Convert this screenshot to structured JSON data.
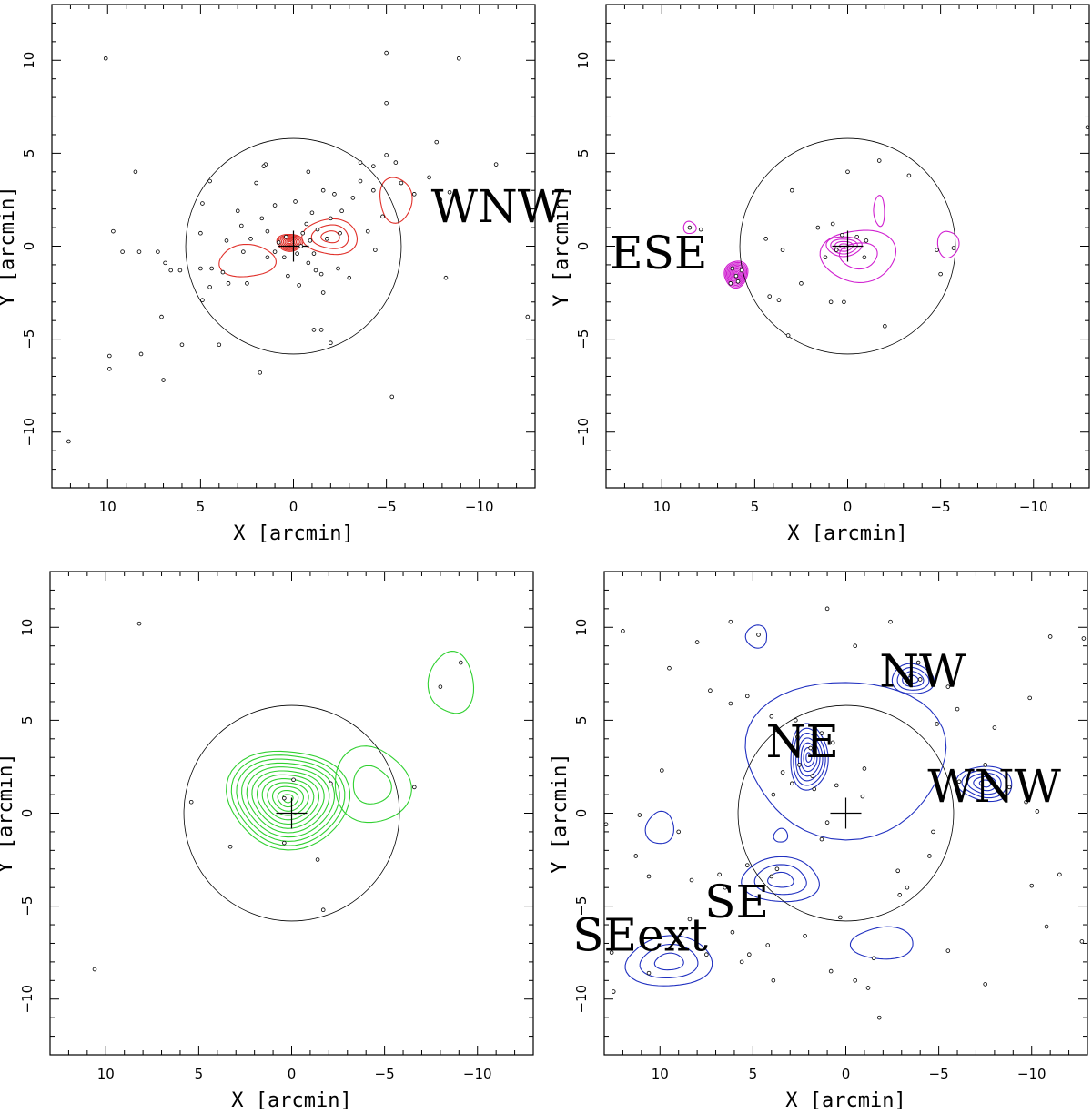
{
  "chart_data": [
    {
      "type": "scatter",
      "panel": "top-left",
      "xlabel": "X [arcmin]",
      "ylabel": "Y [arcmin]",
      "xlim": [
        13,
        -13
      ],
      "ylim": [
        -13,
        13
      ],
      "xticks": [
        10,
        5,
        0,
        -5,
        -10
      ],
      "yticks": [
        -10,
        -5,
        0,
        5,
        10
      ],
      "contour_color": "#e0302a",
      "circle_radius": 5.8,
      "center": [
        0,
        0
      ],
      "annotations": [
        {
          "text": "WNW",
          "x": -7.4,
          "y": 1.3
        }
      ],
      "blobs": [
        {
          "x": 0.2,
          "y": 0.2,
          "sx": 0.7,
          "sy": 0.5,
          "levels": 8
        },
        {
          "x": -2.0,
          "y": 0.5,
          "sx": 1.6,
          "sy": 1.1,
          "levels": 3
        },
        {
          "x": -5.5,
          "y": 2.5,
          "sx": 1.2,
          "sy": 1.6,
          "levels": 1
        },
        {
          "x": 2.5,
          "y": -0.8,
          "sx": 2.0,
          "sy": 1.2,
          "levels": 1
        }
      ],
      "points": [
        [
          10.1,
          10.1
        ],
        [
          -5.0,
          10.4
        ],
        [
          -8.9,
          10.1
        ],
        [
          -5.0,
          7.7
        ],
        [
          -7.7,
          5.6
        ],
        [
          -10.9,
          4.4
        ],
        [
          -7.3,
          3.7
        ],
        [
          -7.9,
          2.5
        ],
        [
          -8.4,
          2.9
        ],
        [
          8.5,
          4.0
        ],
        [
          9.7,
          0.8
        ],
        [
          9.2,
          -0.3
        ],
        [
          8.3,
          -0.3
        ],
        [
          7.3,
          -0.3
        ],
        [
          6.9,
          -0.9
        ],
        [
          6.6,
          -1.3
        ],
        [
          6.1,
          -1.3
        ],
        [
          5.0,
          -1.2
        ],
        [
          4.4,
          -1.2
        ],
        [
          3.8,
          -1.4
        ],
        [
          -4.4,
          -0.2
        ],
        [
          -3.0,
          -1.7
        ],
        [
          -8.2,
          -1.7
        ],
        [
          -12.6,
          -3.8
        ],
        [
          7.1,
          -3.8
        ],
        [
          4.0,
          -5.3
        ],
        [
          6.0,
          -5.3
        ],
        [
          8.2,
          -5.8
        ],
        [
          9.9,
          -5.9
        ],
        [
          9.9,
          -6.6
        ],
        [
          1.8,
          -6.8
        ],
        [
          7.0,
          -7.2
        ],
        [
          -5.3,
          -8.1
        ],
        [
          12.1,
          -10.5
        ],
        [
          -1.1,
          -4.5
        ],
        [
          -2.0,
          -5.2
        ],
        [
          -1.5,
          -4.5
        ],
        [
          4.9,
          -2.9
        ],
        [
          4.5,
          -2.2
        ],
        [
          3.5,
          -2.0
        ],
        [
          2.5,
          -2.0
        ],
        [
          -1.6,
          -2.5
        ],
        [
          -0.3,
          -2.1
        ],
        [
          0.3,
          -1.6
        ],
        [
          -1.5,
          -1.5
        ],
        [
          -2.4,
          -1.2
        ],
        [
          -1.2,
          -1.3
        ],
        [
          -0.8,
          -0.9
        ],
        [
          0.5,
          -0.6
        ],
        [
          1.0,
          -0.3
        ],
        [
          -0.2,
          -0.4
        ],
        [
          0.4,
          0.5
        ],
        [
          0.8,
          0.2
        ],
        [
          -0.5,
          0.7
        ],
        [
          -0.9,
          0.3
        ],
        [
          -1.3,
          0.9
        ],
        [
          -1.8,
          0.4
        ],
        [
          -2.5,
          0.7
        ],
        [
          -2.0,
          1.5
        ],
        [
          -1.0,
          1.8
        ],
        [
          -0.7,
          1.2
        ],
        [
          -2.6,
          1.9
        ],
        [
          -3.2,
          2.6
        ],
        [
          -2.2,
          2.8
        ],
        [
          -3.6,
          3.5
        ],
        [
          -4.3,
          3.0
        ],
        [
          -4.3,
          4.3
        ],
        [
          -5.0,
          4.9
        ],
        [
          -5.5,
          4.5
        ],
        [
          -4.8,
          1.6
        ],
        [
          -4.0,
          0.8
        ],
        [
          -6.5,
          2.8
        ],
        [
          -5.8,
          3.4
        ],
        [
          1.7,
          1.5
        ],
        [
          1.4,
          0.8
        ],
        [
          2.3,
          0.4
        ],
        [
          2.8,
          1.1
        ],
        [
          3.0,
          1.9
        ],
        [
          4.9,
          2.3
        ],
        [
          4.5,
          3.5
        ],
        [
          1.0,
          2.2
        ],
        [
          -0.1,
          2.4
        ],
        [
          2.0,
          3.4
        ],
        [
          1.5,
          4.4
        ],
        [
          -0.8,
          4.0
        ],
        [
          -1.6,
          3.0
        ],
        [
          1.4,
          -0.6
        ],
        [
          -1.1,
          -0.4
        ],
        [
          -0.4,
          0.0
        ],
        [
          3.6,
          0.3
        ],
        [
          2.7,
          -0.3
        ],
        [
          5.0,
          0.7
        ],
        [
          -3.6,
          4.5
        ],
        [
          1.6,
          4.3
        ]
      ]
    },
    {
      "type": "scatter",
      "panel": "top-right",
      "xlabel": "X [arcmin]",
      "ylabel": "Y [arcmin]",
      "xlim": [
        13,
        -13
      ],
      "ylim": [
        -13,
        13
      ],
      "xticks": [
        10,
        5,
        0,
        -5,
        -10
      ],
      "yticks": [
        -10,
        -5,
        0,
        5,
        10
      ],
      "contour_color": "#d020d0",
      "circle_radius": 5.8,
      "center": [
        0,
        0
      ],
      "annotations": [
        {
          "text": "ESE",
          "x": 12.8,
          "y": -1.2
        }
      ],
      "blobs": [
        {
          "x": 6.0,
          "y": -1.5,
          "sx": 0.65,
          "sy": 0.75,
          "levels": 10
        },
        {
          "x": 8.5,
          "y": 1.0,
          "sx": 0.45,
          "sy": 0.45,
          "levels": 1
        },
        {
          "x": 0.2,
          "y": 0.0,
          "sx": 1.0,
          "sy": 0.6,
          "levels": 4
        },
        {
          "x": -0.6,
          "y": -0.5,
          "sx": 2.3,
          "sy": 1.7,
          "levels": 2
        },
        {
          "x": -1.7,
          "y": 1.9,
          "sx": 0.4,
          "sy": 1.1,
          "levels": 1
        },
        {
          "x": -5.4,
          "y": 0.1,
          "sx": 0.75,
          "sy": 1.0,
          "levels": 1
        }
      ],
      "points": [
        [
          8.5,
          1.0
        ],
        [
          7.9,
          0.9
        ],
        [
          6.2,
          -1.2
        ],
        [
          6.0,
          -1.6
        ],
        [
          5.9,
          -1.9
        ],
        [
          5.7,
          -1.3
        ],
        [
          6.3,
          -2.0
        ],
        [
          3.5,
          -0.2
        ],
        [
          4.2,
          -2.7
        ],
        [
          3.0,
          3.0
        ],
        [
          0.0,
          4.0
        ],
        [
          -2.0,
          -4.3
        ],
        [
          -3.3,
          3.8
        ],
        [
          -1.7,
          4.6
        ],
        [
          3.7,
          -2.9
        ],
        [
          0.9,
          -3.0
        ],
        [
          0.2,
          -3.0
        ],
        [
          -1.0,
          0.3
        ],
        [
          -0.9,
          -0.6
        ],
        [
          0.3,
          0.6
        ],
        [
          0.6,
          -0.2
        ],
        [
          1.2,
          -0.6
        ],
        [
          -0.5,
          0.5
        ],
        [
          1.6,
          1.0
        ],
        [
          0.8,
          1.2
        ],
        [
          -4.8,
          -0.2
        ],
        [
          -5.0,
          -1.5
        ],
        [
          -5.7,
          -0.1
        ],
        [
          2.5,
          -2.0
        ],
        [
          4.4,
          0.4
        ],
        [
          3.2,
          -4.8
        ],
        [
          -12.9,
          6.4
        ]
      ]
    },
    {
      "type": "scatter",
      "panel": "bottom-left",
      "xlabel": "X [arcmin]",
      "ylabel": "Y [arcmin]",
      "xlim": [
        13,
        -13
      ],
      "ylim": [
        -13,
        13
      ],
      "xticks": [
        10,
        5,
        0,
        -5,
        -10
      ],
      "yticks": [
        -10,
        -5,
        0,
        5,
        10
      ],
      "contour_color": "#30d030",
      "circle_radius": 5.8,
      "center": [
        0,
        0
      ],
      "annotations": [],
      "blobs": [
        {
          "x": 0.2,
          "y": 0.8,
          "sx": 3.3,
          "sy": 2.8,
          "levels": 12
        },
        {
          "x": -4.3,
          "y": 1.5,
          "sx": 2.4,
          "sy": 2.4,
          "levels": 2
        },
        {
          "x": -8.6,
          "y": 7.0,
          "sx": 1.6,
          "sy": 2.3,
          "levels": 1
        }
      ],
      "points": [
        [
          8.2,
          10.2
        ],
        [
          -9.1,
          8.1
        ],
        [
          -8.0,
          6.8
        ],
        [
          5.4,
          0.6
        ],
        [
          0.4,
          0.8
        ],
        [
          -0.1,
          1.8
        ],
        [
          3.3,
          -1.8
        ],
        [
          0.4,
          -1.6
        ],
        [
          -1.4,
          -2.5
        ],
        [
          -2.1,
          1.6
        ],
        [
          -6.6,
          1.4
        ],
        [
          -1.7,
          -5.2
        ],
        [
          10.6,
          -8.4
        ]
      ]
    },
    {
      "type": "scatter",
      "panel": "bottom-right",
      "xlabel": "X [arcmin]",
      "ylabel": "Y [arcmin]",
      "xlim": [
        13,
        -13
      ],
      "ylim": [
        -13,
        13
      ],
      "xticks": [
        10,
        5,
        0,
        -5,
        -10
      ],
      "yticks": [
        -10,
        -5,
        0,
        5,
        10
      ],
      "contour_color": "#2030c0",
      "circle_radius": 5.8,
      "center": [
        0,
        0
      ],
      "annotations": [
        {
          "text": "NE",
          "x": 4.3,
          "y": 3.0
        },
        {
          "text": "NW",
          "x": -1.8,
          "y": 6.8
        },
        {
          "text": "WNW",
          "x": -4.4,
          "y": 0.6
        },
        {
          "text": "SE",
          "x": 7.6,
          "y": -5.6
        },
        {
          "text": "SEext",
          "x": 14.7,
          "y": -7.4
        }
      ],
      "blobs": [
        {
          "x": 2.0,
          "y": 3.0,
          "sx": 1.1,
          "sy": 1.8,
          "levels": 7
        },
        {
          "x": -3.6,
          "y": 7.2,
          "sx": 1.2,
          "sy": 0.9,
          "levels": 4
        },
        {
          "x": -7.5,
          "y": 1.6,
          "sx": 1.6,
          "sy": 1.0,
          "levels": 5
        },
        {
          "x": 3.5,
          "y": -3.6,
          "sx": 2.4,
          "sy": 1.3,
          "levels": 3
        },
        {
          "x": 9.5,
          "y": -8.0,
          "sx": 2.6,
          "sy": 1.5,
          "levels": 3
        },
        {
          "x": 4.8,
          "y": 9.5,
          "sx": 0.8,
          "sy": 0.8,
          "levels": 1
        },
        {
          "x": 10.0,
          "y": -0.8,
          "sx": 1.0,
          "sy": 1.2,
          "levels": 1
        },
        {
          "x": 3.5,
          "y": -1.2,
          "sx": 0.5,
          "sy": 0.5,
          "levels": 1
        },
        {
          "x": -2.0,
          "y": -7.0,
          "sx": 2.2,
          "sy": 1.2,
          "levels": 1
        },
        {
          "x": 0.0,
          "y": 3.0,
          "sx": 7.5,
          "sy": 5.5,
          "levels": 1
        }
      ],
      "points": [
        [
          12.0,
          9.8
        ],
        [
          6.2,
          10.3
        ],
        [
          4.7,
          9.6
        ],
        [
          1.0,
          11.0
        ],
        [
          -2.4,
          10.3
        ],
        [
          -0.5,
          9.0
        ],
        [
          -3.9,
          8.1
        ],
        [
          -3.5,
          7.4
        ],
        [
          -4.0,
          7.2
        ],
        [
          -5.5,
          6.8
        ],
        [
          -6.0,
          5.6
        ],
        [
          -4.9,
          4.8
        ],
        [
          9.5,
          7.8
        ],
        [
          8.0,
          9.2
        ],
        [
          7.3,
          6.6
        ],
        [
          6.2,
          5.9
        ],
        [
          5.3,
          6.3
        ],
        [
          4.0,
          5.2
        ],
        [
          2.7,
          5.0
        ],
        [
          2.6,
          4.1
        ],
        [
          1.3,
          4.3
        ],
        [
          1.9,
          3.5
        ],
        [
          2.5,
          2.6
        ],
        [
          1.8,
          2.0
        ],
        [
          2.9,
          1.6
        ],
        [
          1.7,
          1.3
        ],
        [
          3.4,
          2.2
        ],
        [
          3.9,
          1.0
        ],
        [
          0.7,
          3.8
        ],
        [
          -1.0,
          2.4
        ],
        [
          0.5,
          1.5
        ],
        [
          1.0,
          -0.5
        ],
        [
          -0.9,
          0.9
        ],
        [
          9.9,
          2.3
        ],
        [
          11.1,
          -0.1
        ],
        [
          9.0,
          -1.0
        ],
        [
          12.9,
          -0.6
        ],
        [
          11.3,
          -2.3
        ],
        [
          10.6,
          -3.4
        ],
        [
          8.3,
          -3.6
        ],
        [
          6.8,
          -3.3
        ],
        [
          5.3,
          -2.8
        ],
        [
          6.5,
          -4.0
        ],
        [
          6.1,
          -6.4
        ],
        [
          8.4,
          -5.7
        ],
        [
          9.1,
          -6.8
        ],
        [
          7.5,
          -7.6
        ],
        [
          5.2,
          -7.6
        ],
        [
          4.2,
          -7.1
        ],
        [
          2.2,
          -6.6
        ],
        [
          -1.5,
          -7.8
        ],
        [
          -0.5,
          -9.0
        ],
        [
          -1.2,
          -9.4
        ],
        [
          0.8,
          -8.5
        ],
        [
          3.9,
          -9.0
        ],
        [
          5.6,
          -8.0
        ],
        [
          10.6,
          -8.6
        ],
        [
          12.5,
          -9.6
        ],
        [
          12.6,
          -7.5
        ],
        [
          -2.9,
          -4.4
        ],
        [
          -2.8,
          -3.1
        ],
        [
          -3.3,
          -4.0
        ],
        [
          -4.5,
          -2.3
        ],
        [
          -4.7,
          -1.0
        ],
        [
          -6.1,
          1.7
        ],
        [
          -7.8,
          1.8
        ],
        [
          -7.5,
          2.6
        ],
        [
          -8.8,
          1.4
        ],
        [
          -9.7,
          0.6
        ],
        [
          -10.3,
          0.1
        ],
        [
          -10.0,
          -3.9
        ],
        [
          -10.8,
          -6.1
        ],
        [
          -11.5,
          -3.3
        ],
        [
          -12.7,
          -6.9
        ],
        [
          -12.8,
          9.4
        ],
        [
          -11.0,
          9.5
        ],
        [
          -9.9,
          6.2
        ],
        [
          -8.0,
          4.6
        ],
        [
          -7.5,
          -9.2
        ],
        [
          -1.8,
          -11.0
        ],
        [
          -5.5,
          -7.4
        ],
        [
          0.3,
          -5.6
        ],
        [
          3.7,
          -3.0
        ],
        [
          1.3,
          -1.4
        ],
        [
          4.0,
          -3.4
        ]
      ]
    }
  ]
}
